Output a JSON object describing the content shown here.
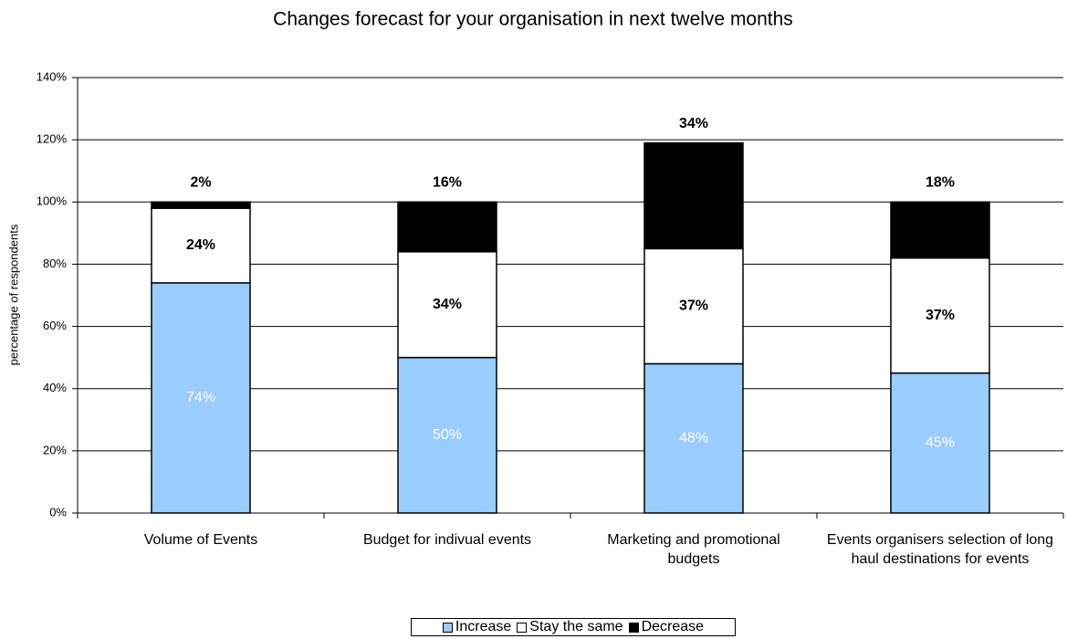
{
  "chart_data": {
    "type": "stacked-bar",
    "title": "Changes forecast for your organisation in next twelve months",
    "y_label": "percentage of respondents",
    "categories": [
      "Volume of Events",
      "Budget for indivual events",
      "Marketing and promotional budgets",
      "Events organisers selection of long haul destinations for events"
    ],
    "series": [
      {
        "name": "Increase",
        "color": "#99ccff",
        "values": [
          74,
          50,
          48,
          45
        ],
        "value_labels": [
          "74%",
          "50%",
          "48%",
          "45%"
        ]
      },
      {
        "name": "Stay the same",
        "color": "#ffffff",
        "values": [
          24,
          34,
          37,
          37
        ],
        "value_labels": [
          "24%",
          "34%",
          "37%",
          "37%"
        ]
      },
      {
        "name": "Decrease",
        "color": "#000000",
        "values": [
          2,
          16,
          34,
          18
        ],
        "value_labels": [
          "2%",
          "16%",
          "34%",
          "18%"
        ]
      }
    ],
    "ylim": [
      0,
      140
    ],
    "yticks": [
      {
        "value": 0,
        "label": "0%"
      },
      {
        "value": 20,
        "label": "20%"
      },
      {
        "value": 40,
        "label": "40%"
      },
      {
        "value": 60,
        "label": "60%"
      },
      {
        "value": 80,
        "label": "80%"
      },
      {
        "value": 100,
        "label": "100%"
      },
      {
        "value": 120,
        "label": "120%"
      },
      {
        "value": 140,
        "label": "140%"
      }
    ],
    "grid": true,
    "legend": "bottom"
  }
}
